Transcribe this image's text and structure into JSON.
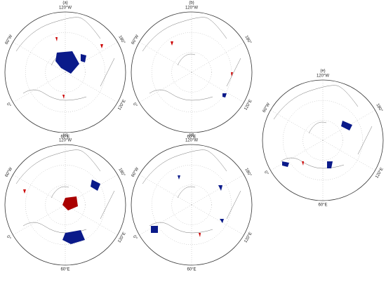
{
  "panels": [
    {
      "label": "(a)",
      "lon_labels": {
        "top": "120°W",
        "upper_right": "180°",
        "lower_right": "120°E",
        "bottom": "60°E",
        "lower_left": "0°",
        "upper_left": "60°W"
      }
    },
    {
      "label": "(b)",
      "lon_labels": {
        "top": "120°W",
        "upper_right": "180°",
        "lower_right": "120°E",
        "bottom": "60°E",
        "lower_left": "0°",
        "upper_left": "60°W"
      }
    },
    {
      "label": "(c)",
      "lon_labels": {
        "top": "120°W",
        "upper_right": "180°",
        "lower_right": "120°E",
        "bottom": "60°E",
        "lower_left": "0°",
        "upper_left": "60°W"
      }
    },
    {
      "label": "(d)",
      "lon_labels": {
        "top": "120°W",
        "upper_right": "180°",
        "lower_right": "120°E",
        "bottom": "60°E",
        "lower_left": "0°",
        "upper_left": "60°W"
      }
    },
    {
      "label": "(e)",
      "lon_labels": {
        "top": "120°W",
        "upper_right": "180°",
        "lower_right": "120°E",
        "bottom": "60°E",
        "lower_left": "0°",
        "upper_left": "60°W"
      }
    }
  ]
}
